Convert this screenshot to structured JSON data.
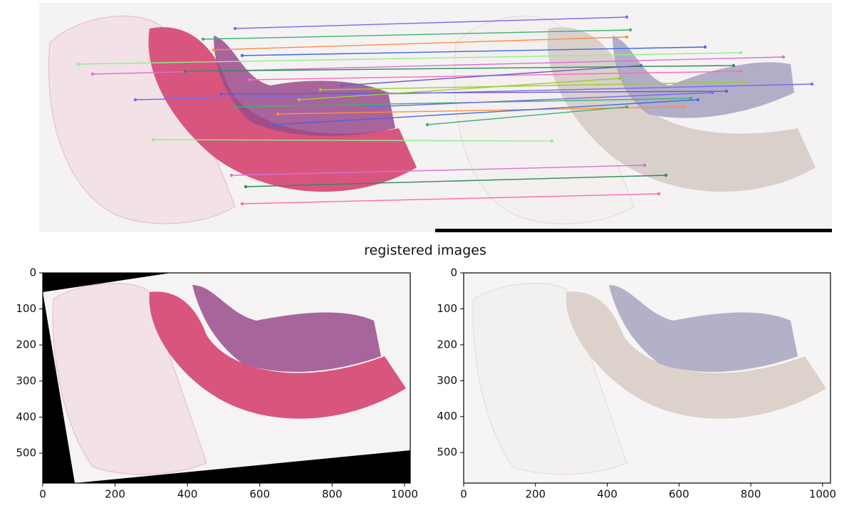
{
  "figure_title": "registered images",
  "chart_data": [
    {
      "type": "image",
      "xlim": [
        0,
        1016
      ],
      "ylim": [
        583,
        0
      ],
      "xticks": [
        0,
        200,
        400,
        600,
        800,
        1000
      ],
      "yticks": [
        0,
        100,
        200,
        300,
        400,
        500
      ]
    },
    {
      "type": "image",
      "xlim": [
        0,
        1022
      ],
      "ylim": [
        585,
        0
      ],
      "xticks": [
        0,
        200,
        400,
        600,
        800,
        1000
      ],
      "yticks": [
        0,
        100,
        200,
        300,
        400,
        500
      ]
    }
  ]
}
